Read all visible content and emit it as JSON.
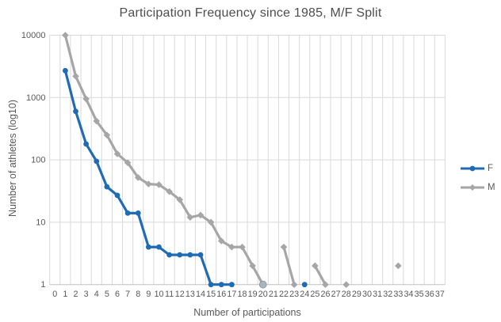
{
  "title": "Participation Frequency since 1985, M/F Split",
  "colors": {
    "f_series": "#1F6CB4",
    "m_series": "#A6A6A6",
    "gridline": "#D9D9D9",
    "axis_line": "#BFBFBF",
    "text": "#595959",
    "title_text": "#4D4D4D",
    "overlap_fill": "#A7B5BF",
    "overlap_stroke": "#8E9CA6",
    "background": "#FFFFFF"
  },
  "chart_data": {
    "type": "line",
    "title": "Participation Frequency since 1985, M/F Split",
    "xlabel": "Number of participations",
    "ylabel": "Number of athletes (log10)",
    "y_scale": "log10",
    "ylim": [
      1,
      10000
    ],
    "y_ticks": [
      1,
      10,
      100,
      1000,
      10000
    ],
    "y_tick_labels": [
      "1",
      "10",
      "100",
      "1000",
      "10000"
    ],
    "x_labels": [
      "0",
      "1",
      "2",
      "3",
      "4",
      "5",
      "6",
      "7",
      "8",
      "9",
      "10",
      "11",
      "12",
      "13",
      "14",
      "15",
      "16",
      "17",
      "18",
      "19",
      "20",
      "21",
      "22",
      "23",
      "24",
      "25",
      "26",
      "27",
      "28",
      "29",
      "30",
      "31",
      "32",
      "33",
      "34",
      "35",
      "36",
      "37"
    ],
    "grid": true,
    "legend_position": "right",
    "series": [
      {
        "name": "F",
        "marker": "circle",
        "color": "#1F6CB4",
        "values": [
          null,
          2700,
          600,
          180,
          95,
          37,
          27,
          14,
          14,
          4,
          4,
          3,
          3,
          3,
          3,
          1,
          1,
          1,
          null,
          null,
          1,
          null,
          null,
          null,
          1,
          null,
          null,
          null,
          null,
          null,
          null,
          null,
          null,
          null,
          null,
          null,
          null,
          null
        ]
      },
      {
        "name": "M",
        "marker": "diamond",
        "color": "#A6A6A6",
        "values": [
          null,
          10000,
          2200,
          950,
          420,
          250,
          125,
          90,
          52,
          41,
          40,
          31,
          23,
          12,
          13,
          10,
          5,
          4,
          4,
          2,
          1,
          null,
          4,
          1,
          null,
          2,
          1,
          null,
          1,
          null,
          null,
          null,
          null,
          2,
          null,
          null,
          null,
          null
        ]
      }
    ],
    "overlap_points": [
      {
        "x": 20,
        "value": 1,
        "note": "F and M markers coincide"
      }
    ]
  },
  "legend": {
    "items": [
      {
        "label": "F",
        "color": "#1F6CB4",
        "marker": "circle"
      },
      {
        "label": "M",
        "color": "#A6A6A6",
        "marker": "diamond"
      }
    ]
  }
}
